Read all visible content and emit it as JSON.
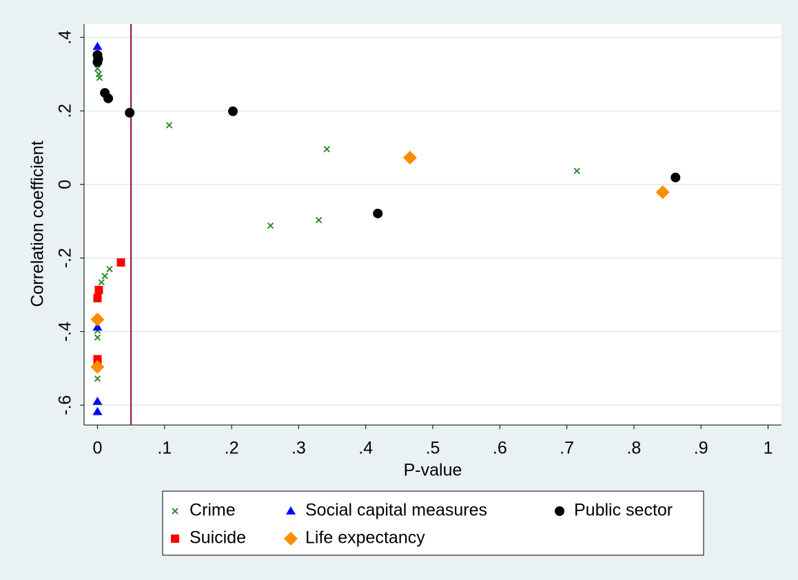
{
  "chart_data": {
    "type": "scatter",
    "x_label": "P-value",
    "y_label": "Correlation coefficient",
    "xlim": [
      -0.02,
      1.02
    ],
    "ylim": [
      -0.654,
      0.436
    ],
    "xticks": [
      0,
      {
        "value": 0.1,
        "label": ".1"
      },
      {
        "value": 0.2,
        "label": ".2"
      },
      {
        "value": 0.3,
        "label": ".3"
      },
      {
        "value": 0.4,
        "label": ".4"
      },
      {
        "value": 0.5,
        "label": ".5"
      },
      {
        "value": 0.6,
        "label": ".6"
      },
      {
        "value": 0.7,
        "label": ".7"
      },
      {
        "value": 0.8,
        "label": ".8"
      },
      {
        "value": 0.9,
        "label": ".9"
      },
      1
    ],
    "yticks": [
      {
        "value": -0.6,
        "label": "-.6"
      },
      {
        "value": -0.4,
        "label": "-.4"
      },
      {
        "value": -0.2,
        "label": "-.2"
      },
      0,
      {
        "value": 0.2,
        "label": ".2"
      },
      {
        "value": 0.4,
        "label": ".4"
      }
    ],
    "grid": true,
    "vline": 0.05,
    "vline_color": "#8b0a3a",
    "series": [
      {
        "name": "Crime",
        "color": "#2e8b2e",
        "marker": "x",
        "x": [
          0.0,
          0.002,
          0.003,
          0.107,
          0.342,
          0.715,
          0.258,
          0.33,
          0.018,
          0.011,
          0.006,
          0.0,
          0.0,
          0.0,
          0.0
        ],
        "values": [
          0.315,
          0.3,
          0.29,
          0.161,
          0.096,
          0.037,
          -0.112,
          -0.097,
          -0.23,
          -0.249,
          -0.266,
          -0.397,
          -0.416,
          -0.472,
          -0.528
        ]
      },
      {
        "name": "Social capital measures",
        "color": "#0000ff",
        "marker": "triangle",
        "x": [
          0.0,
          0.0,
          0.0,
          0.0
        ],
        "values": [
          0.375,
          -0.388,
          -0.59,
          -0.618
        ]
      },
      {
        "name": "Public sector",
        "color": "#000000",
        "marker": "circle",
        "x": [
          0.0,
          0.001,
          0.0,
          0.011,
          0.016,
          0.048,
          0.202,
          0.418,
          0.862
        ],
        "values": [
          0.352,
          0.341,
          0.333,
          0.249,
          0.234,
          0.195,
          0.199,
          -0.079,
          0.019
        ]
      },
      {
        "name": "Suicide",
        "color": "#ff0000",
        "marker": "square",
        "x": [
          0.035,
          0.002,
          0.0,
          0.0,
          0.0
        ],
        "values": [
          -0.212,
          -0.287,
          -0.309,
          -0.475,
          -0.482
        ]
      },
      {
        "name": "Life expectancy",
        "color": "#ff8c00",
        "marker": "diamond",
        "x": [
          0.466,
          0.843,
          0.0,
          0.0
        ],
        "values": [
          0.073,
          -0.021,
          -0.367,
          -0.496
        ]
      }
    ]
  }
}
